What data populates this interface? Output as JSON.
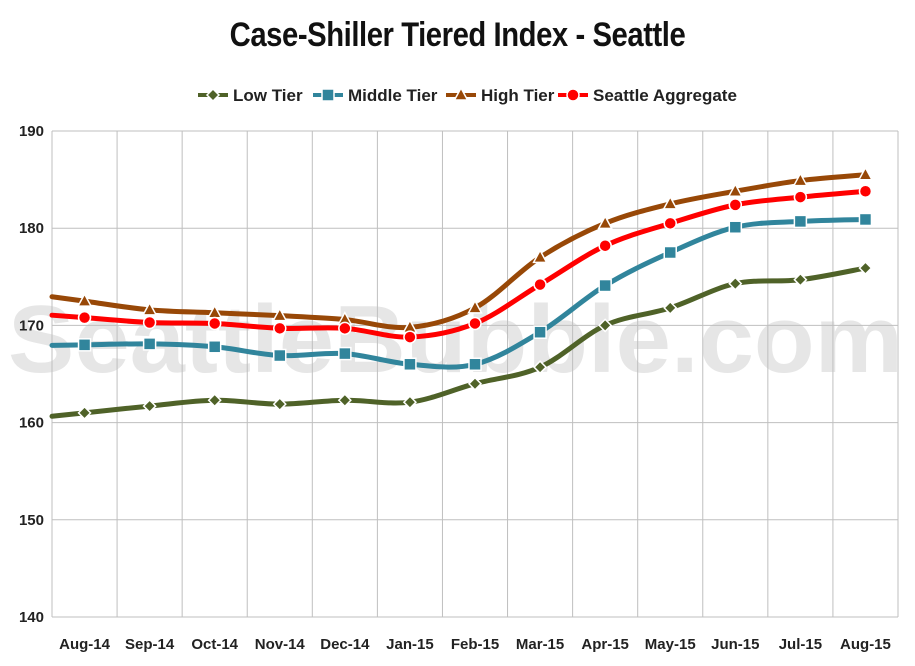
{
  "chart_data": {
    "type": "line",
    "title": "Case-Shiller Tiered Index - Seattle",
    "watermark": "SeattleBubble.com",
    "categories": [
      "Aug-14",
      "Sep-14",
      "Oct-14",
      "Nov-14",
      "Dec-14",
      "Jan-15",
      "Feb-15",
      "Mar-15",
      "Apr-15",
      "May-15",
      "Jun-15",
      "Jul-15",
      "Aug-15"
    ],
    "ylim": [
      140,
      190
    ],
    "yticks": [
      "140",
      "150",
      "160",
      "170",
      "180",
      "190"
    ],
    "grid": true,
    "legend_position": "top",
    "series": [
      {
        "name": "Low Tier",
        "color": "#4f6228",
        "marker": "diamond",
        "values": [
          161.0,
          161.7,
          162.3,
          161.9,
          162.3,
          162.1,
          164.0,
          165.7,
          170.0,
          171.8,
          174.3,
          174.7,
          175.9
        ]
      },
      {
        "name": "Middle Tier",
        "color": "#31859c",
        "marker": "square",
        "values": [
          168.0,
          168.1,
          167.8,
          166.9,
          167.1,
          166.0,
          166.0,
          169.3,
          174.1,
          177.5,
          180.1,
          180.7,
          180.9
        ]
      },
      {
        "name": "High Tier",
        "color": "#984807",
        "marker": "triangle",
        "values": [
          172.5,
          171.6,
          171.3,
          171.0,
          170.6,
          169.8,
          171.8,
          177.0,
          180.5,
          182.5,
          183.8,
          184.9,
          185.5
        ]
      },
      {
        "name": "Seattle Aggregate",
        "color": "#ff0000",
        "marker": "circle",
        "values": [
          170.8,
          170.3,
          170.2,
          169.7,
          169.7,
          168.8,
          170.2,
          174.2,
          178.2,
          180.5,
          182.4,
          183.2,
          183.8
        ]
      }
    ]
  }
}
